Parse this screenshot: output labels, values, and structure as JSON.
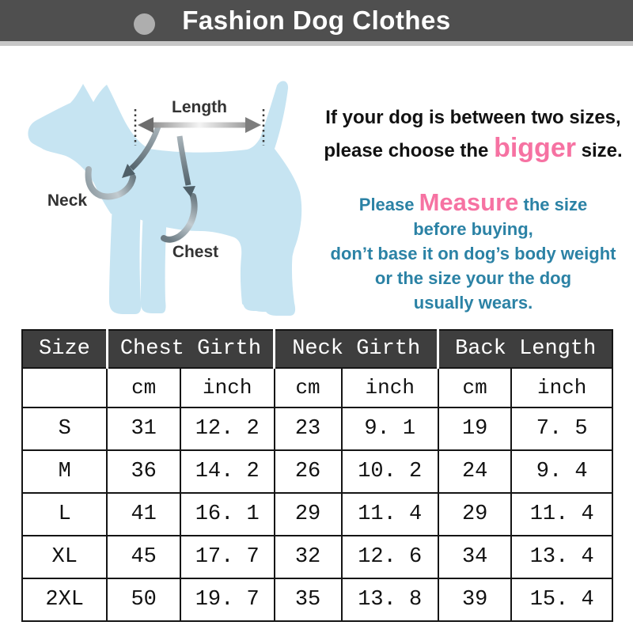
{
  "header": {
    "title": "Fashion Dog Clothes",
    "bar_color": "#4f4f4f",
    "dot_color": "#aeaeae"
  },
  "diagram": {
    "dog_color": "#c6e4f2",
    "labels": {
      "length": "Length",
      "neck": "Neck",
      "chest": "Chest"
    }
  },
  "notes": {
    "accent_pink": "#f672a2",
    "text_blue": "#2b82a5",
    "size_advice": {
      "line1": "If your dog is between two sizes,",
      "line2_before": "please choose the ",
      "highlight": "bigger",
      "line2_after": " size."
    },
    "measure_advice": {
      "line1_before": "Please ",
      "highlight": "Measure",
      "line1_after": " the size",
      "line2": "before buying,",
      "line3": "don’t base it on dog’s body weight",
      "line4": "or the size your the dog",
      "line5": "usually wears."
    }
  },
  "table": {
    "columns": [
      "Size",
      "Chest Girth",
      "Neck Girth",
      "Back Length"
    ],
    "units": [
      "cm",
      "inch",
      "cm",
      "inch",
      "cm",
      "inch"
    ],
    "rows": [
      {
        "size": "S",
        "values": [
          "31",
          "12. 2",
          "23",
          "9. 1",
          "19",
          "7. 5"
        ]
      },
      {
        "size": "M",
        "values": [
          "36",
          "14. 2",
          "26",
          "10. 2",
          "24",
          "9. 4"
        ]
      },
      {
        "size": "L",
        "values": [
          "41",
          "16. 1",
          "29",
          "11. 4",
          "29",
          "11. 4"
        ]
      },
      {
        "size": "XL",
        "values": [
          "45",
          "17. 7",
          "32",
          "12. 6",
          "34",
          "13. 4"
        ]
      },
      {
        "size": "2XL",
        "values": [
          "50",
          "19. 7",
          "35",
          "13. 8",
          "39",
          "15. 4"
        ]
      }
    ]
  }
}
